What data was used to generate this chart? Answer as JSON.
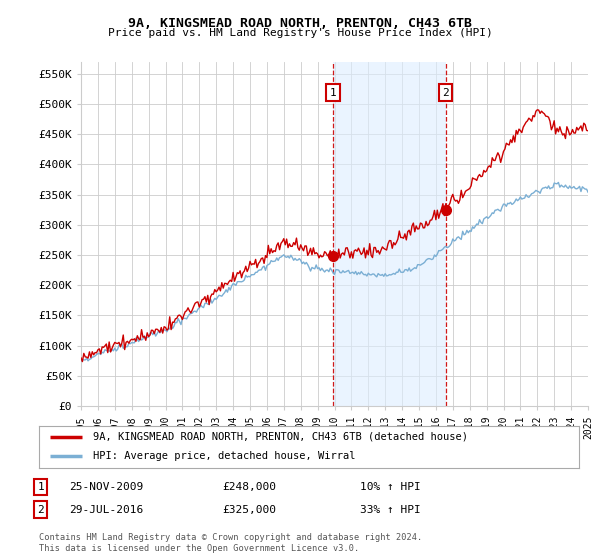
{
  "title": "9A, KINGSMEAD ROAD NORTH, PRENTON, CH43 6TB",
  "subtitle": "Price paid vs. HM Land Registry's House Price Index (HPI)",
  "ylim": [
    0,
    570000
  ],
  "yticks": [
    0,
    50000,
    100000,
    150000,
    200000,
    250000,
    300000,
    350000,
    400000,
    450000,
    500000,
    550000
  ],
  "ytick_labels": [
    "£0",
    "£50K",
    "£100K",
    "£150K",
    "£200K",
    "£250K",
    "£300K",
    "£350K",
    "£400K",
    "£450K",
    "£500K",
    "£550K"
  ],
  "sale1_date": 2009.9,
  "sale1_price": 248000,
  "sale1_label": "1",
  "sale1_text": "25-NOV-2009",
  "sale1_amount": "£248,000",
  "sale1_hpi": "10% ↑ HPI",
  "sale2_date": 2016.57,
  "sale2_price": 325000,
  "sale2_label": "2",
  "sale2_text": "29-JUL-2016",
  "sale2_amount": "£325,000",
  "sale2_hpi": "33% ↑ HPI",
  "line_color_sale": "#cc0000",
  "line_color_hpi": "#7bafd4",
  "vline_color": "#cc0000",
  "marker_color": "#cc0000",
  "shade_color": "#ddeeff",
  "grid_color": "#cccccc",
  "background_color": "#ffffff",
  "legend_label_sale": "9A, KINGSMEAD ROAD NORTH, PRENTON, CH43 6TB (detached house)",
  "legend_label_hpi": "HPI: Average price, detached house, Wirral",
  "footnote": "Contains HM Land Registry data © Crown copyright and database right 2024.\nThis data is licensed under the Open Government Licence v3.0.",
  "xstart": 1995,
  "xend": 2025
}
